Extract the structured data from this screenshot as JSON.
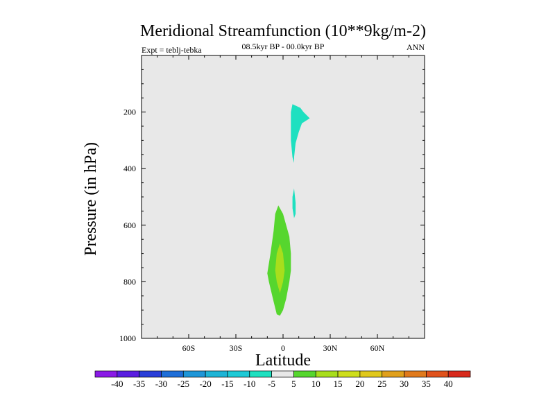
{
  "chart_data": {
    "type": "contour",
    "title": "Meridional Streamfunction (10**9kg/m-2)",
    "subtitle": "08.5kyr BP - 00.0kyr BP",
    "left_label": "Expt = teblj-tebka",
    "right_label": "ANN",
    "xlabel": "Latitude",
    "ylabel": "Pressure (in hPa)",
    "xlim": [
      -90,
      90
    ],
    "ylim": [
      1000,
      0
    ],
    "x_ticks": [
      {
        "value": -60,
        "label": "60S"
      },
      {
        "value": -30,
        "label": "30S"
      },
      {
        "value": 0,
        "label": "0"
      },
      {
        "value": 30,
        "label": "30N"
      },
      {
        "value": 60,
        "label": "60N"
      }
    ],
    "y_ticks": [
      {
        "value": 200,
        "label": "200"
      },
      {
        "value": 400,
        "label": "400"
      },
      {
        "value": 600,
        "label": "600"
      },
      {
        "value": 800,
        "label": "800"
      },
      {
        "value": 1000,
        "label": "1000"
      }
    ],
    "background_color": "#e8e8e8",
    "regions": [
      {
        "name": "upper-cyan-region",
        "range": "-10 to -5",
        "color": "#1ee0c0",
        "points": [
          [
            6,
            172
          ],
          [
            11,
            185
          ],
          [
            13,
            200
          ],
          [
            17,
            222
          ],
          [
            12,
            240
          ],
          [
            10,
            270
          ],
          [
            8,
            310
          ],
          [
            7,
            360
          ],
          [
            7,
            380
          ],
          [
            6,
            360
          ],
          [
            5,
            300
          ],
          [
            5,
            250
          ],
          [
            5,
            200
          ]
        ]
      },
      {
        "name": "mid-cyan-region",
        "range": "-10 to -5",
        "color": "#1ee0c0",
        "points": [
          [
            7,
            470
          ],
          [
            8,
            520
          ],
          [
            8,
            560
          ],
          [
            7,
            575
          ],
          [
            6,
            540
          ],
          [
            6,
            500
          ]
        ]
      },
      {
        "name": "lower-green-region",
        "range": "5 to 10",
        "color": "#56d62e",
        "points": [
          [
            -3,
            530
          ],
          [
            0,
            560
          ],
          [
            2,
            600
          ],
          [
            4,
            640
          ],
          [
            5,
            700
          ],
          [
            5,
            760
          ],
          [
            4,
            800
          ],
          [
            2,
            860
          ],
          [
            0,
            900
          ],
          [
            -2,
            920
          ],
          [
            -4,
            915
          ],
          [
            -6,
            870
          ],
          [
            -9,
            800
          ],
          [
            -10,
            770
          ],
          [
            -8,
            700
          ],
          [
            -6,
            620
          ],
          [
            -5,
            560
          ]
        ]
      },
      {
        "name": "lower-yellowgreen-region",
        "range": "10 to 15",
        "color": "#a8de1c",
        "points": [
          [
            -2,
            665
          ],
          [
            0,
            700
          ],
          [
            1,
            760
          ],
          [
            0,
            800
          ],
          [
            -2,
            840
          ],
          [
            -4,
            800
          ],
          [
            -5,
            760
          ],
          [
            -4,
            700
          ]
        ]
      }
    ],
    "colorbar": {
      "labels": [
        "-40",
        "-35",
        "-30",
        "-25",
        "-20",
        "-15",
        "-10",
        "-5",
        "5",
        "10",
        "15",
        "20",
        "25",
        "30",
        "35",
        "40"
      ],
      "colors": [
        "#8a1ae6",
        "#5a1ee0",
        "#2a3ed8",
        "#1e6ed8",
        "#1e96d8",
        "#1eb4d6",
        "#1ecad6",
        "#1ee0c0",
        "#e8e8e8",
        "#56d62e",
        "#a8de1c",
        "#cede1c",
        "#e0c81c",
        "#e0a01c",
        "#e07a1c",
        "#e0521c",
        "#d82a1c"
      ]
    }
  }
}
